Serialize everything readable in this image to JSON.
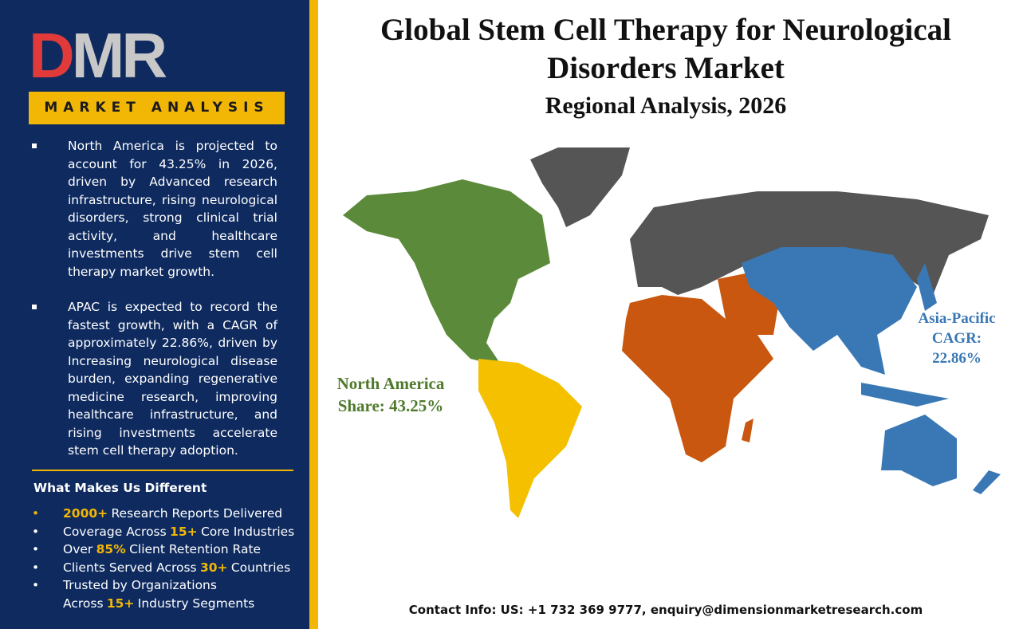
{
  "sidebar": {
    "logo": [
      "D",
      "MR"
    ],
    "tagline": "MARKET ANALYSIS",
    "paragraphs": [
      "North America is projected to account for 43.25% in 2026, driven by Advanced research infrastructure, rising neurological disorders, strong clinical trial activity, and healthcare investments drive stem cell therapy market growth.",
      "APAC is expected to record the fastest growth, with a CAGR of approximately 22.86%, driven by Increasing neurological disease burden, expanding regenerative medicine research, improving healthcare infrastructure, and rising investments accelerate stem cell therapy adoption."
    ],
    "differences_title": "What Makes Us Different",
    "differences": [
      {
        "parts": [
          "2000+",
          "Research Reports Delivered"
        ],
        "highlight": 0
      },
      {
        "parts": [
          "Coverage Across",
          "15+",
          "Core Industries"
        ],
        "highlight": 1
      },
      {
        "parts": [
          "Over",
          "85%",
          "Client Retention Rate"
        ],
        "highlight": 1
      },
      {
        "parts": [
          "Clients Served Across",
          "30+",
          "Countries"
        ],
        "highlight": 1
      },
      {
        "parts": [
          "Trusted by Organizations Across",
          "15+",
          "Industry Segments"
        ],
        "highlight": 1
      }
    ]
  },
  "main": {
    "title": "Global Stem Cell Therapy for Neurological Disorders  Market",
    "subtitle": "Regional Analysis, 2026",
    "annotations": {
      "north_america": [
        "North America",
        "Share: 43.25%"
      ],
      "asia_pacific": [
        "Asia-Pacific",
        "CAGR:",
        "22.86%"
      ]
    },
    "contact": "Contact Info: US: +1 732 369 9777, enquiry@dimensionmarketresearch.com"
  }
}
